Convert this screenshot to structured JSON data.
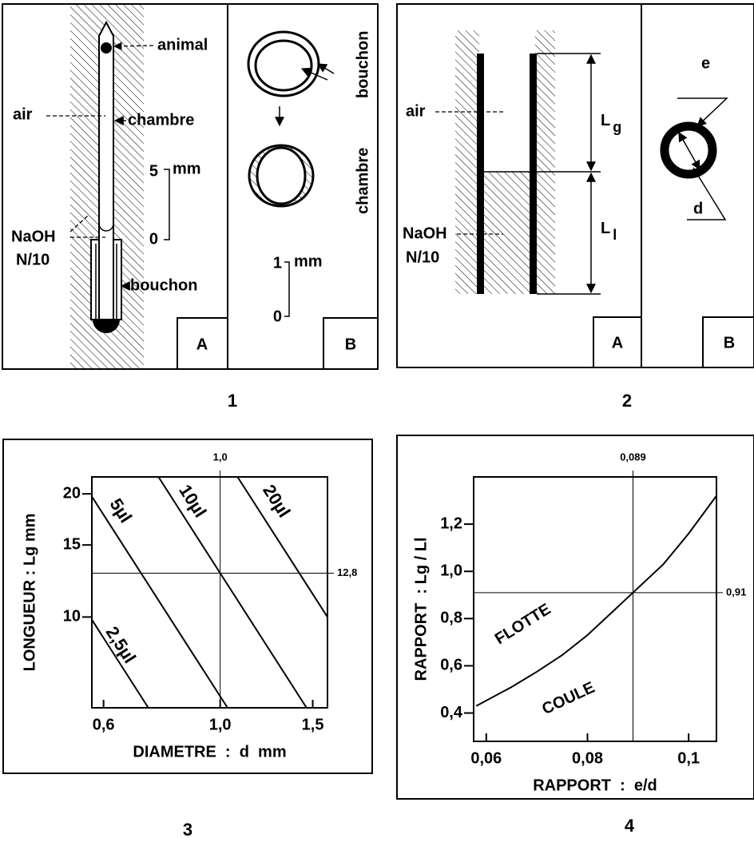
{
  "figure1": {
    "caption": "1",
    "panel_a": {
      "animal": "animal",
      "air": "air",
      "chambre": "chambre",
      "scale_max": "5",
      "scale_unit": "mm",
      "scale_min": "0",
      "naoh": "NaOH",
      "naoh_conc": "N/10",
      "bouchon": "bouchon",
      "tag": "A"
    },
    "panel_b": {
      "chambre": "chambre",
      "bouchon": "bouchon",
      "scale_max": "1",
      "scale_unit": "mm",
      "scale_min": "0",
      "tag": "B"
    }
  },
  "figure2": {
    "caption": "2",
    "panel_a": {
      "air": "air",
      "naoh": "NaOH",
      "naoh_conc": "N/10",
      "lg": [
        "L",
        "g"
      ],
      "ll": [
        "L",
        "l"
      ],
      "tag": "A"
    },
    "panel_b": {
      "e": "e",
      "d": "d",
      "tag": "B"
    }
  },
  "chart_data": [
    {
      "type": "line",
      "caption": "3",
      "xlabel": "DIAMETRE  :  d  mm",
      "ylabel": "LONGUEUR : Lg mm",
      "log_x": true,
      "log_y": true,
      "xlim": [
        0.57,
        1.6
      ],
      "ylim": [
        6,
        22
      ],
      "xticks": [
        {
          "value": 0.6,
          "label": "0,6"
        },
        {
          "value": 1.0,
          "label": "1,0"
        },
        {
          "value": 1.5,
          "label": "1,5"
        }
      ],
      "yticks": [
        10,
        15,
        20
      ],
      "reference_lines": {
        "x": {
          "value": 1.0,
          "label": "1,0"
        },
        "y": {
          "value": 12.8,
          "label": "12,8"
        }
      },
      "series": [
        {
          "name": "2,5µl",
          "color": "#000000",
          "x": [
            0.57,
            0.73
          ],
          "values": [
            9.85,
            6
          ]
        },
        {
          "name": "5µl",
          "color": "#000000",
          "x": [
            0.57,
            1.033
          ],
          "values": [
            19.7,
            6
          ]
        },
        {
          "name": "10µl",
          "color": "#000000",
          "x": [
            0.763,
            1.46
          ],
          "values": [
            22,
            6
          ]
        },
        {
          "name": "20µl",
          "color": "#000000",
          "x": [
            1.079,
            1.6
          ],
          "values": [
            22,
            10
          ]
        }
      ]
    },
    {
      "type": "line",
      "caption": "4",
      "xlabel": "RAPPORT  :  e/d",
      "ylabel": "RAPPORT  : Lg / Ll",
      "log_x": false,
      "log_y": false,
      "xlim": [
        0.0575,
        0.1055
      ],
      "ylim": [
        0.28,
        1.4
      ],
      "xticks": [
        {
          "value": 0.06,
          "label": "0,06"
        },
        {
          "value": 0.08,
          "label": "0,08"
        },
        {
          "value": 0.1,
          "label": "0,1"
        }
      ],
      "yticks": [
        {
          "value": 0.4,
          "label": "0,4"
        },
        {
          "value": 0.6,
          "label": "0,6"
        },
        {
          "value": 0.8,
          "label": "0,8"
        },
        {
          "value": 1.0,
          "label": "1,0"
        },
        {
          "value": 1.2,
          "label": "1,2"
        }
      ],
      "reference_lines": {
        "x": {
          "value": 0.089,
          "label": "0,089"
        },
        "y": {
          "value": 0.91,
          "label": "0,91"
        }
      },
      "annotations": [
        "FLOTTE",
        "COULE"
      ],
      "series": [
        {
          "color": "#000000",
          "x": [
            0.058,
            0.065,
            0.07,
            0.075,
            0.08,
            0.085,
            0.089,
            0.095,
            0.1,
            0.1055
          ],
          "values": [
            0.43,
            0.51,
            0.575,
            0.645,
            0.73,
            0.83,
            0.91,
            1.03,
            1.16,
            1.32
          ]
        }
      ]
    }
  ]
}
